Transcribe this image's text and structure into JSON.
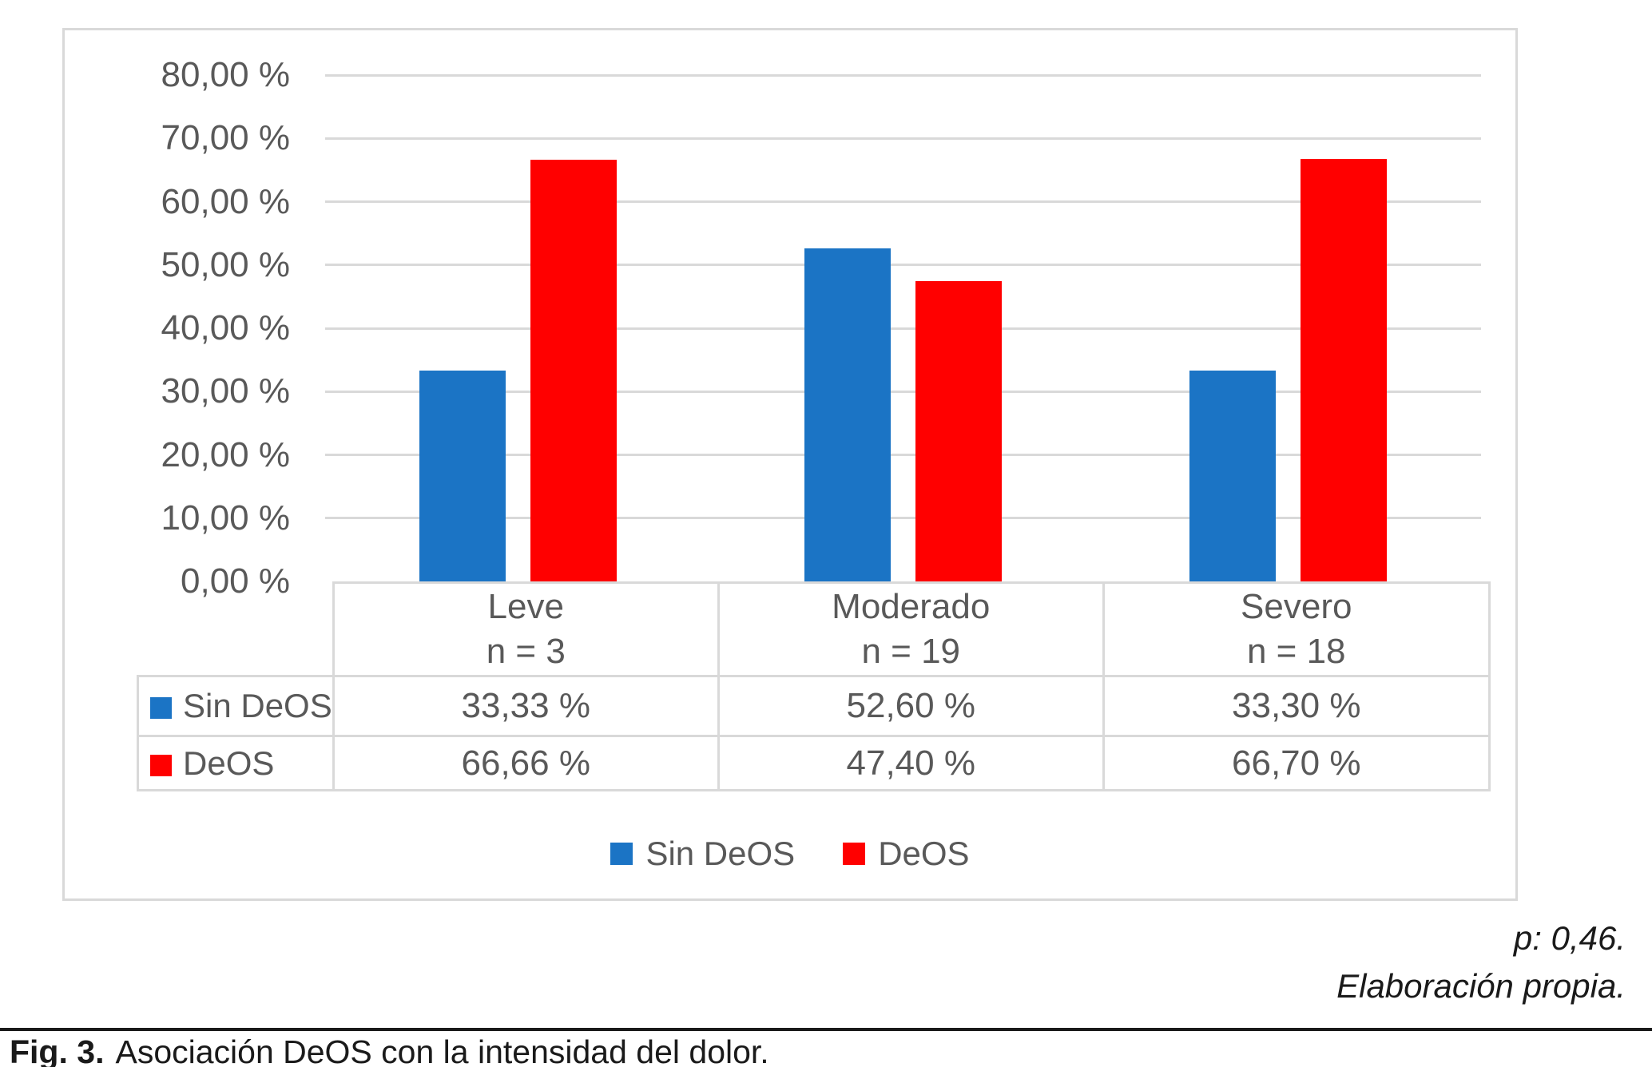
{
  "chart_data": {
    "type": "bar",
    "title": "",
    "categories": [
      {
        "label": "Leve",
        "n_label": "n = 3"
      },
      {
        "label": "Moderado",
        "n_label": "n = 19"
      },
      {
        "label": "Severo",
        "n_label": "n = 18"
      }
    ],
    "series": [
      {
        "name": "Sin DeOS",
        "color": "#1B74C5",
        "values": [
          33.33,
          52.6,
          33.3
        ],
        "value_labels": [
          "33,33 %",
          "52,60 %",
          "33,30 %"
        ]
      },
      {
        "name": "DeOS",
        "color": "#FF0000",
        "values": [
          66.66,
          47.4,
          66.7
        ],
        "value_labels": [
          "66,66 %",
          "47,40 %",
          "66,70 %"
        ]
      }
    ],
    "y_axis": {
      "min": 0,
      "max": 80,
      "step": 10,
      "tick_labels": [
        "0,00 %",
        "10,00 %",
        "20,00 %",
        "30,00 %",
        "40,00 %",
        "50,00 %",
        "60,00 %",
        "70,00 %",
        "80,00 %"
      ]
    },
    "legend": [
      "Sin DeOS",
      "DeOS"
    ],
    "legend_position": "bottom",
    "grid": true,
    "data_table_shown": true
  },
  "notes": {
    "p_value": "p: 0,46.",
    "source": "Elaboración propia."
  },
  "caption": {
    "label": "Fig. 3.",
    "text": "Asociación DeOS con la intensidad del dolor."
  },
  "colors": {
    "series_blue": "#1B74C5",
    "series_red": "#FF0000",
    "grid": "#D9D9D9",
    "chart_text": "#595959",
    "caption_text": "#1A1A1A"
  }
}
